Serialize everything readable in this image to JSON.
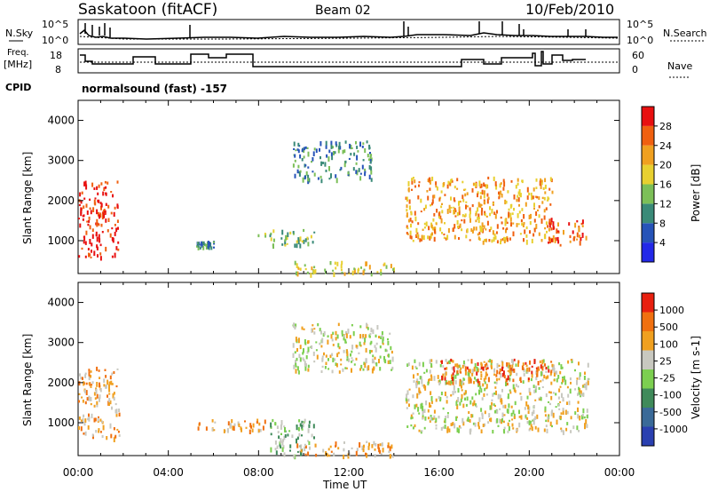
{
  "header": {
    "station": "Saskatoon (fitACF)",
    "beam": "Beam 02",
    "date": "10/Feb/2010",
    "n_sky": "N.Sky",
    "n_search": "N.Search",
    "freq_label_1": "Freq.",
    "freq_label_2": "[MHz]",
    "nave": "Nave",
    "cpid": "CPID",
    "cpid_value": "normalsound (fast) -157",
    "noise_tick_top": "10^5",
    "noise_tick_bottom": "10^0",
    "freq_tick_top": "18",
    "freq_tick_bottom": "8",
    "nave_tick_top": "60",
    "nave_tick_bottom": "0"
  },
  "chart_data": [
    {
      "type": "heatmap",
      "ylabel": "Slant Range [km]",
      "ylim": [
        180,
        4500
      ],
      "yticks": [
        "1000",
        "2000",
        "3000",
        "4000"
      ],
      "colorbar_label": "Power [dB]",
      "colorbar_ticks": [
        "4",
        "8",
        "12",
        "16",
        "20",
        "24",
        "28"
      ],
      "colors": [
        "#2228e8",
        "#2653b8",
        "#3a8a78",
        "#7cbf58",
        "#e8d030",
        "#f0a020",
        "#f06010",
        "#e81010"
      ],
      "regions": [
        {
          "t": [
            0.0,
            1.8
          ],
          "range": [
            600,
            2500
          ],
          "level": 7
        },
        {
          "t": [
            5.2,
            6.0
          ],
          "range": [
            850,
            1000
          ],
          "level": 2
        },
        {
          "t": [
            7.9,
            10.5
          ],
          "range": [
            900,
            1300
          ],
          "level": 3
        },
        {
          "t": [
            9.5,
            13.0
          ],
          "range": [
            2500,
            3500
          ],
          "level": 2
        },
        {
          "t": [
            14.5,
            21.0
          ],
          "range": [
            1000,
            2600
          ],
          "level": 5
        },
        {
          "t": [
            20.8,
            22.6
          ],
          "range": [
            900,
            1600
          ],
          "level": 6
        },
        {
          "t": [
            9.5,
            14.0
          ],
          "range": [
            200,
            500
          ],
          "level": 4
        }
      ]
    },
    {
      "type": "heatmap",
      "ylabel": "Slant Range [km]",
      "xlabel": "Time UT",
      "ylim": [
        180,
        4500
      ],
      "yticks": [
        "1000",
        "2000",
        "3000",
        "4000"
      ],
      "xticks": [
        "00:00",
        "04:00",
        "08:00",
        "12:00",
        "16:00",
        "20:00",
        "00:00"
      ],
      "xlim": [
        0,
        24
      ],
      "colorbar_label": "Velocity [m s-1]",
      "colorbar_ticks": [
        "1000",
        "500",
        "100",
        "25",
        "-25",
        "-100",
        "-500",
        "-1000"
      ],
      "colors": [
        "#2a40b0",
        "#3a6a98",
        "#3f8a5a",
        "#7ccf50",
        "#c8c8c0",
        "#f0a020",
        "#f07010",
        "#e82010"
      ],
      "regions": [
        {
          "t": [
            0.0,
            1.8
          ],
          "range": [
            600,
            2400
          ],
          "level": 5
        },
        {
          "t": [
            5.2,
            8.5
          ],
          "range": [
            800,
            1100
          ],
          "level": 5
        },
        {
          "t": [
            8.5,
            10.5
          ],
          "range": [
            200,
            1100
          ],
          "level": 3
        },
        {
          "t": [
            9.5,
            14.0
          ],
          "range": [
            2300,
            3500
          ],
          "level": 4
        },
        {
          "t": [
            14.5,
            22.6
          ],
          "range": [
            800,
            2600
          ],
          "level": 4
        },
        {
          "t": [
            16.0,
            21.0
          ],
          "range": [
            2000,
            2600
          ],
          "level": 6
        },
        {
          "t": [
            9.5,
            14.0
          ],
          "range": [
            200,
            550
          ],
          "level": 5
        }
      ]
    }
  ]
}
